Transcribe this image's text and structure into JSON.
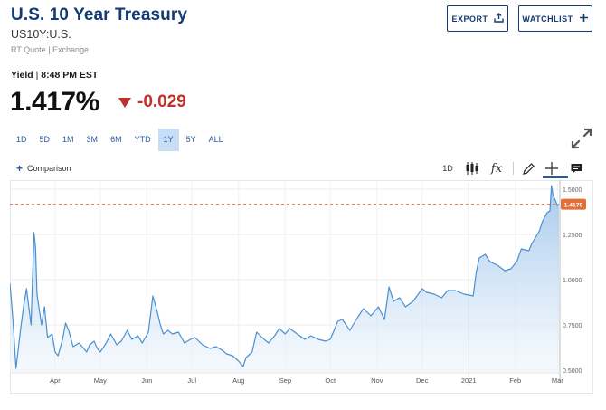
{
  "header": {
    "title": "U.S. 10 Year Treasury",
    "symbol": "US10Y:U.S.",
    "quote_source": "RT Quote | Exchange",
    "export_label": "EXPORT",
    "watchlist_label": "WATCHLIST"
  },
  "quote": {
    "yield_label": "Yield",
    "time": "8:48 PM EST",
    "price": "1.417%",
    "change": "-0.029",
    "change_direction": "down",
    "change_color": "#c0302c"
  },
  "range_tabs": [
    "1D",
    "5D",
    "1M",
    "3M",
    "6M",
    "YTD",
    "1Y",
    "5Y",
    "ALL"
  ],
  "active_range": "1Y",
  "toolbar": {
    "comparison_label": "Comparison",
    "interval_label": "1D",
    "fx_label": "fx",
    "icons": [
      "candlestick-icon",
      "function-icon",
      "pencil-icon",
      "crosshair-icon",
      "comment-icon",
      "expand-icon"
    ]
  },
  "colors": {
    "accent": "#123a73",
    "link": "#2a5a9e",
    "active_tab_bg": "#c7def6",
    "line": "#4a90d0",
    "last_price_line": "#e0703a",
    "last_price_badge": "#e0703a"
  },
  "chart_data": {
    "type": "area",
    "title": "",
    "xlabel": "",
    "ylabel": "",
    "x_tick_labels": [
      "Apr",
      "May",
      "Jun",
      "Jul",
      "Aug",
      "Sep",
      "Oct",
      "Nov",
      "Dec",
      "2021",
      "Feb",
      "Mar"
    ],
    "y_tick_labels": [
      "0.5000",
      "0.7500",
      "1.0000",
      "1.2500",
      "1.5000"
    ],
    "y_ticks": [
      0.5,
      0.75,
      1.0,
      1.25,
      1.5
    ],
    "ylim": [
      0.49,
      1.54
    ],
    "last_price_label": "1.4170",
    "last_price": 1.417,
    "x_period": [
      "2020-03-02",
      "2021-03-02"
    ],
    "x_month_starts": [
      "2020-04-01",
      "2020-05-01",
      "2020-06-01",
      "2020-07-01",
      "2020-08-01",
      "2020-09-01",
      "2020-10-01",
      "2020-11-01",
      "2020-12-01",
      "2021-01-01",
      "2021-02-01",
      "2021-03-01"
    ],
    "series": [
      {
        "x": [
          "2020-03-02",
          "2020-03-04",
          "2020-03-06",
          "2020-03-09",
          "2020-03-11",
          "2020-03-13",
          "2020-03-16",
          "2020-03-18",
          "2020-03-19",
          "2020-03-20",
          "2020-03-23",
          "2020-03-25",
          "2020-03-27",
          "2020-03-30",
          "2020-04-01",
          "2020-04-03",
          "2020-04-06",
          "2020-04-08",
          "2020-04-10",
          "2020-04-13",
          "2020-04-15",
          "2020-04-17",
          "2020-04-20",
          "2020-04-22",
          "2020-04-24",
          "2020-04-27",
          "2020-04-29",
          "2020-05-01",
          "2020-05-05",
          "2020-05-08",
          "2020-05-12",
          "2020-05-15",
          "2020-05-19",
          "2020-05-22",
          "2020-05-26",
          "2020-05-29",
          "2020-06-02",
          "2020-06-05",
          "2020-06-08",
          "2020-06-10",
          "2020-06-12",
          "2020-06-15",
          "2020-06-18",
          "2020-06-22",
          "2020-06-26",
          "2020-06-30",
          "2020-07-03",
          "2020-07-08",
          "2020-07-13",
          "2020-07-17",
          "2020-07-21",
          "2020-07-24",
          "2020-07-28",
          "2020-08-01",
          "2020-08-04",
          "2020-08-06",
          "2020-08-10",
          "2020-08-13",
          "2020-08-18",
          "2020-08-21",
          "2020-08-25",
          "2020-08-28",
          "2020-09-01",
          "2020-09-04",
          "2020-09-09",
          "2020-09-14",
          "2020-09-18",
          "2020-09-23",
          "2020-09-28",
          "2020-10-01",
          "2020-10-06",
          "2020-10-09",
          "2020-10-14",
          "2020-10-19",
          "2020-10-23",
          "2020-10-28",
          "2020-11-02",
          "2020-11-06",
          "2020-11-09",
          "2020-11-12",
          "2020-11-16",
          "2020-11-20",
          "2020-11-25",
          "2020-12-01",
          "2020-12-04",
          "2020-12-09",
          "2020-12-14",
          "2020-12-18",
          "2020-12-23",
          "2020-12-29",
          "2021-01-04",
          "2021-01-06",
          "2021-01-08",
          "2021-01-12",
          "2021-01-15",
          "2021-01-20",
          "2021-01-25",
          "2021-01-29",
          "2021-02-02",
          "2021-02-05",
          "2021-02-10",
          "2021-02-12",
          "2021-02-17",
          "2021-02-19",
          "2021-02-22",
          "2021-02-24",
          "2021-02-25",
          "2021-02-26",
          "2021-03-01",
          "2021-03-02"
        ],
        "values": [
          0.98,
          0.78,
          0.51,
          0.72,
          0.85,
          0.95,
          0.75,
          1.26,
          1.18,
          0.92,
          0.75,
          0.85,
          0.68,
          0.7,
          0.6,
          0.58,
          0.67,
          0.76,
          0.72,
          0.63,
          0.64,
          0.65,
          0.62,
          0.6,
          0.64,
          0.66,
          0.62,
          0.6,
          0.65,
          0.7,
          0.64,
          0.66,
          0.72,
          0.67,
          0.69,
          0.65,
          0.71,
          0.91,
          0.82,
          0.75,
          0.7,
          0.72,
          0.7,
          0.71,
          0.65,
          0.67,
          0.68,
          0.64,
          0.62,
          0.63,
          0.61,
          0.59,
          0.58,
          0.55,
          0.52,
          0.57,
          0.6,
          0.71,
          0.67,
          0.65,
          0.69,
          0.73,
          0.7,
          0.73,
          0.7,
          0.67,
          0.69,
          0.67,
          0.66,
          0.67,
          0.77,
          0.78,
          0.72,
          0.79,
          0.84,
          0.8,
          0.85,
          0.78,
          0.96,
          0.88,
          0.9,
          0.85,
          0.88,
          0.95,
          0.93,
          0.92,
          0.9,
          0.94,
          0.94,
          0.92,
          0.91,
          1.04,
          1.12,
          1.14,
          1.1,
          1.08,
          1.05,
          1.06,
          1.1,
          1.17,
          1.16,
          1.2,
          1.27,
          1.32,
          1.37,
          1.38,
          1.52,
          1.47,
          1.41,
          1.417
        ]
      }
    ]
  }
}
